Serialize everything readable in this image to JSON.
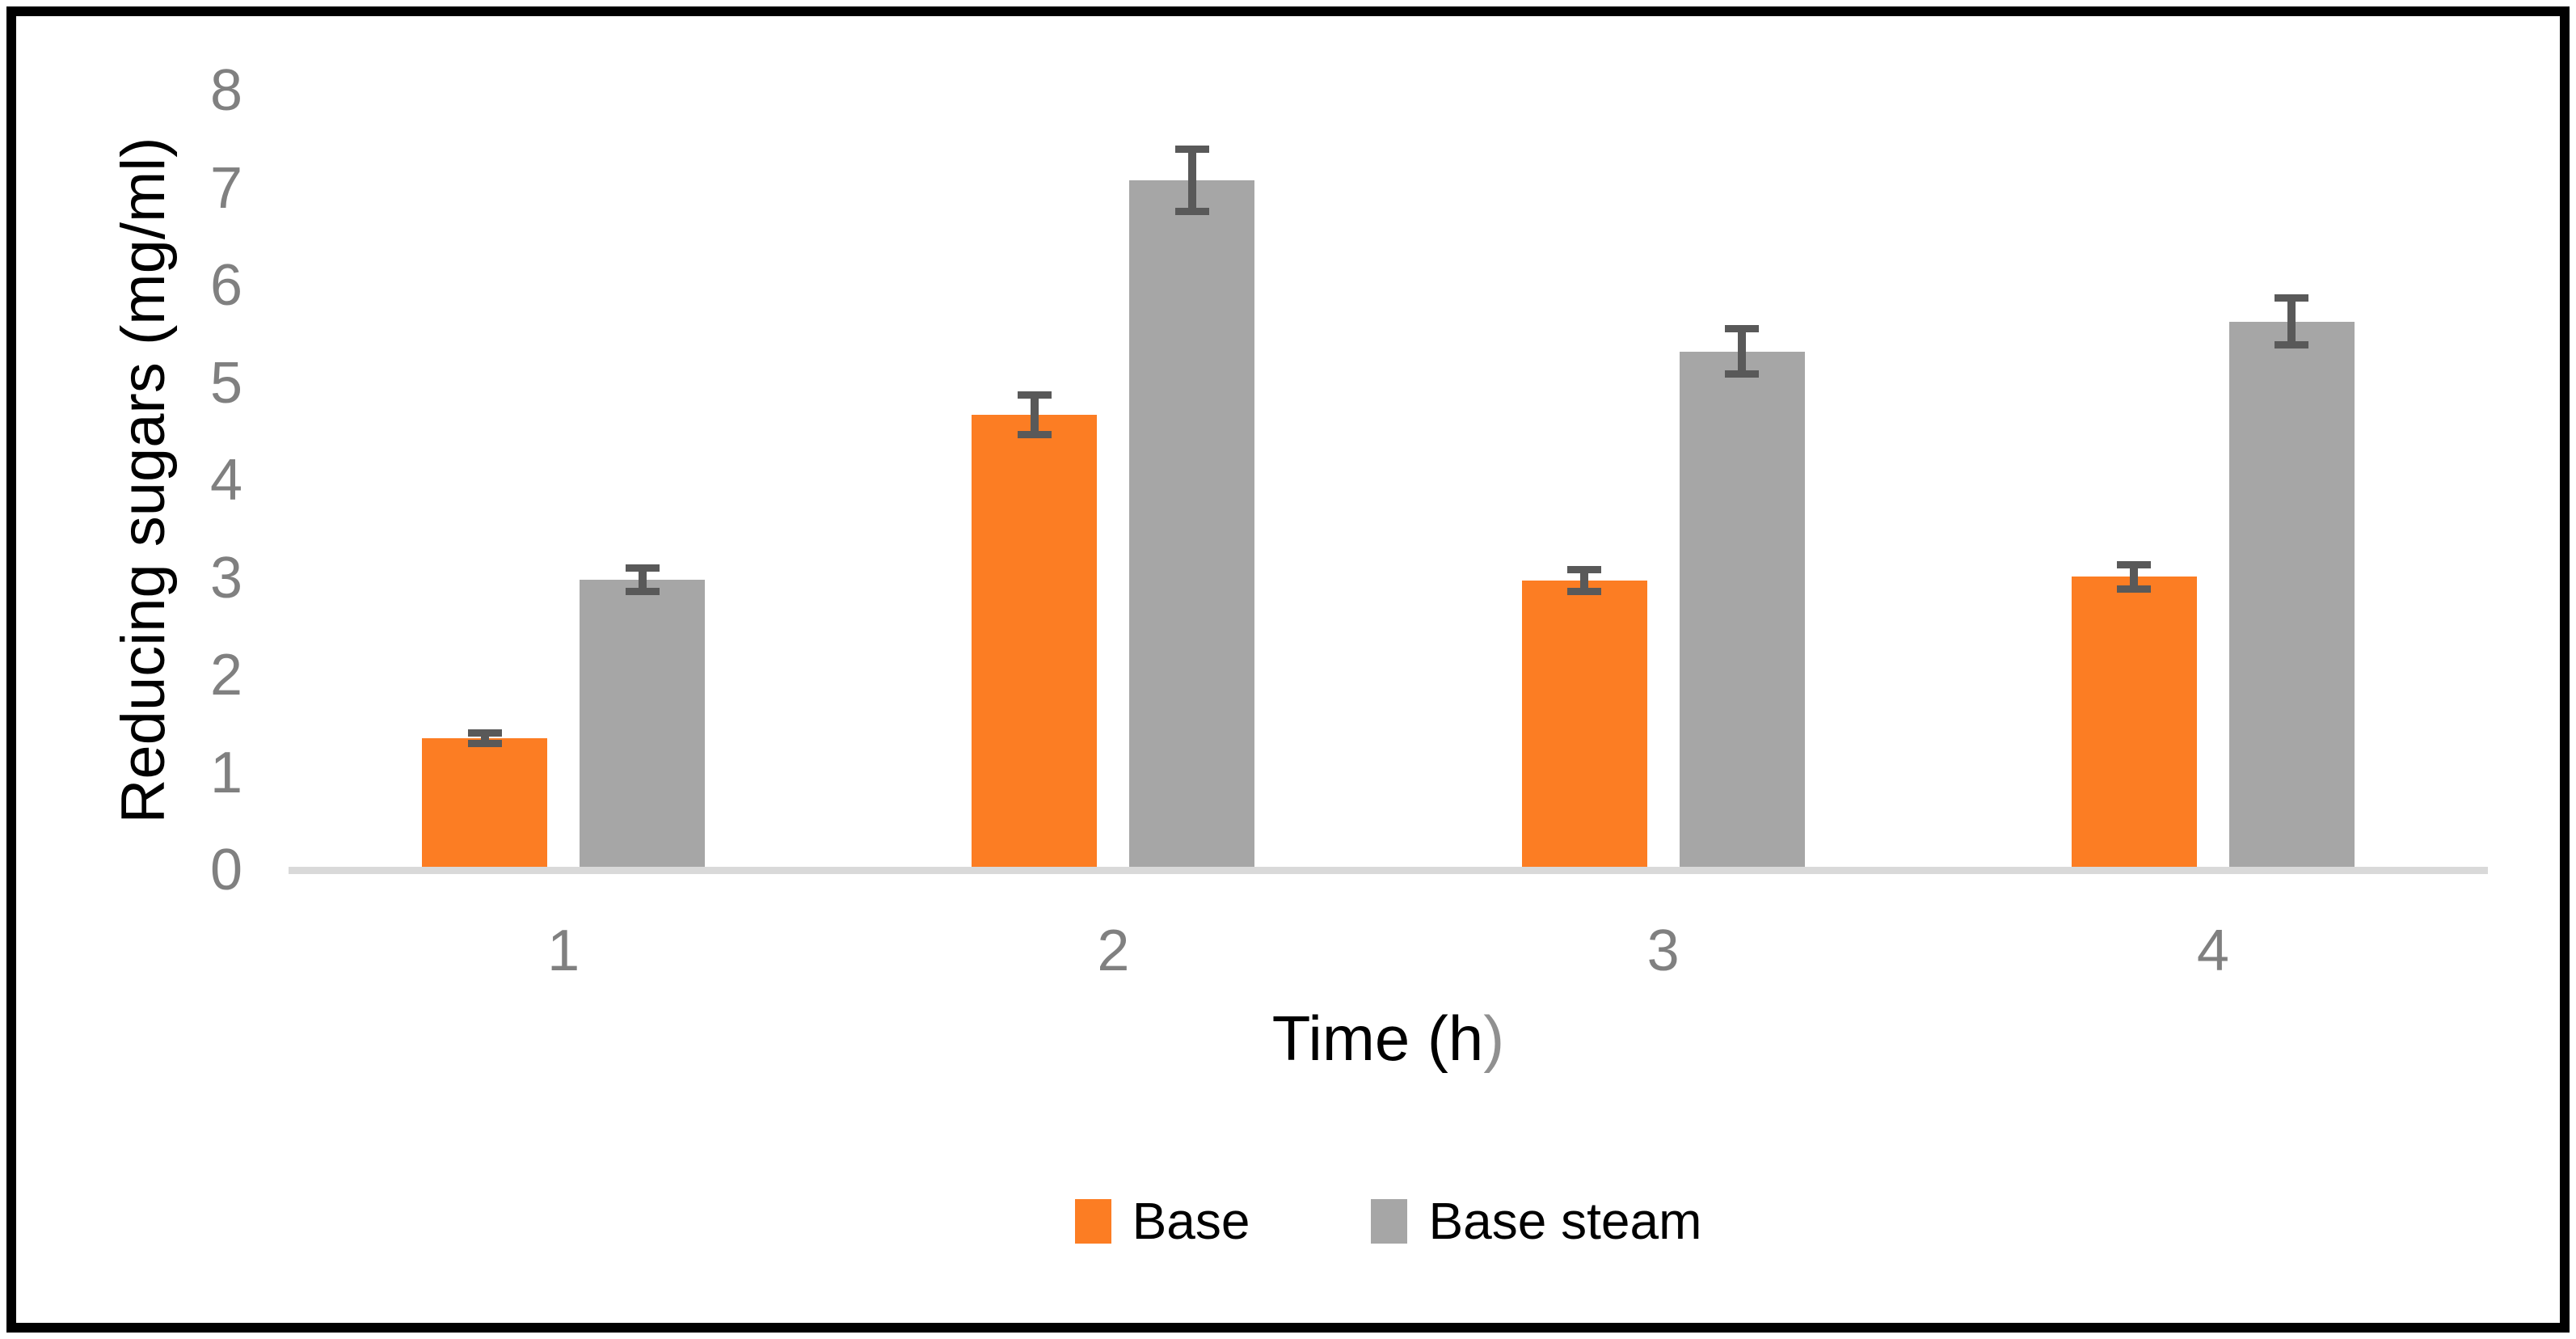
{
  "chart_data": {
    "type": "bar",
    "title": "",
    "categories": [
      "1",
      "2",
      "3",
      "4"
    ],
    "series": [
      {
        "name": "Base",
        "color": "#FC7D23",
        "values": [
          1.35,
          4.67,
          2.97,
          3.01
        ],
        "error_bars": [
          0.09,
          0.24,
          0.15,
          0.16
        ]
      },
      {
        "name": "Base steam",
        "color": "#A6A6A6",
        "values": [
          2.98,
          7.08,
          5.32,
          5.63
        ],
        "error_bars": [
          0.16,
          0.36,
          0.27,
          0.28
        ]
      }
    ],
    "xlabel": "Time (h)",
    "xlabel_parts": {
      "main": "Time (h",
      "closing_paren": ")"
    },
    "ylabel": "Reducing sugars (mg/ml)",
    "ylim": [
      0,
      8
    ],
    "yticks": [
      "0",
      "1",
      "2",
      "3",
      "4",
      "5",
      "6",
      "7",
      "8"
    ],
    "grid": false,
    "legend_position": "bottom",
    "legend_labels": [
      "Base",
      "Base steam"
    ]
  },
  "colors": {
    "base_series": "#FC7D23",
    "base_steam_series": "#A6A6A6",
    "error_bar": "#595959",
    "axis_line": "#D9D9D9",
    "tick_labels": "#808080",
    "axis_titles": "#000000",
    "closing_paren": "#909090",
    "frame_border": "#000000",
    "background": "#FFFFFF"
  }
}
